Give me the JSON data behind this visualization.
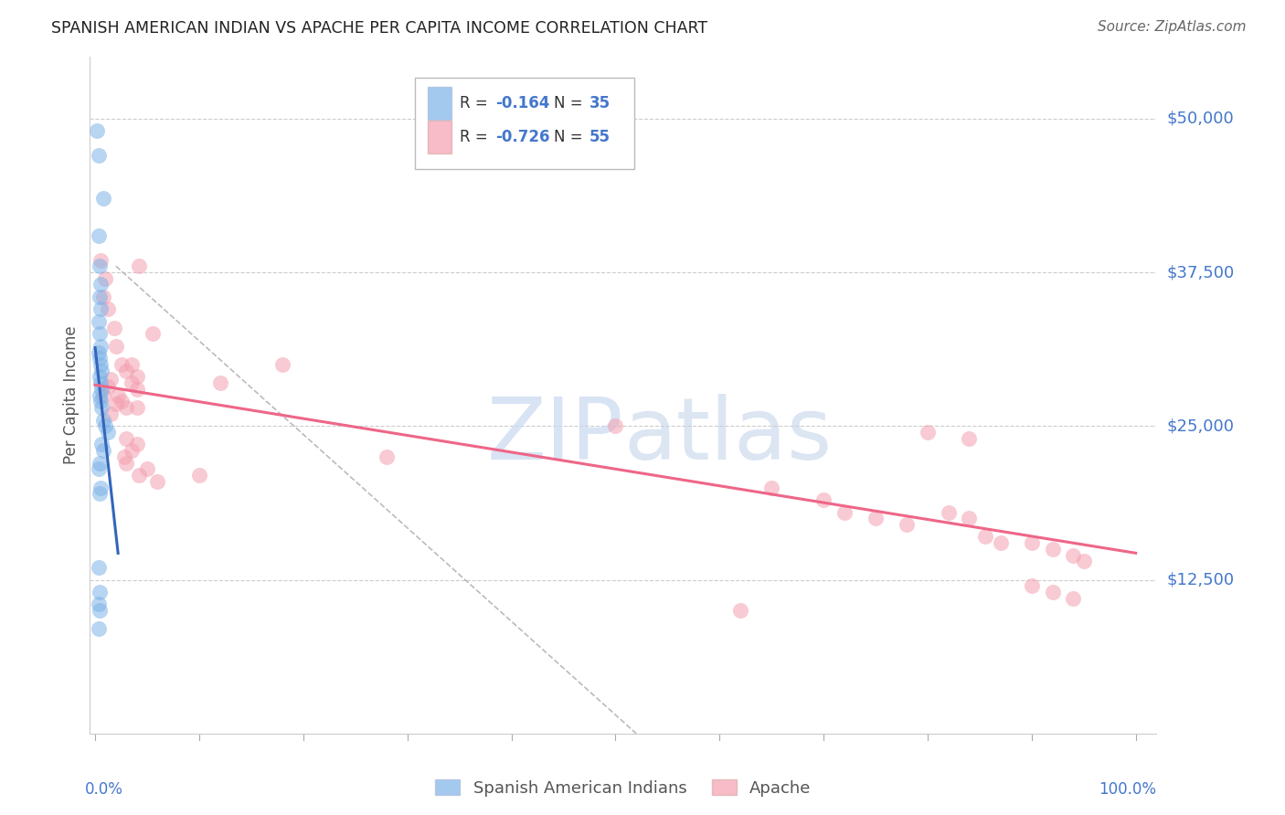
{
  "title": "SPANISH AMERICAN INDIAN VS APACHE PER CAPITA INCOME CORRELATION CHART",
  "source": "Source: ZipAtlas.com",
  "ylabel": "Per Capita Income",
  "ytick_labels": [
    "$12,500",
    "$25,000",
    "$37,500",
    "$50,000"
  ],
  "ytick_values": [
    12500,
    25000,
    37500,
    50000
  ],
  "ymin": 0,
  "ymax": 55000,
  "xmin": 0.0,
  "xmax": 1.0,
  "watermark": "ZIPatlas",
  "legend_blue_r": "-0.164",
  "legend_blue_n": "35",
  "legend_pink_r": "-0.726",
  "legend_pink_n": "55",
  "legend_blue_label": "Spanish American Indians",
  "legend_pink_label": "Apache",
  "blue_color": "#7EB3E8",
  "pink_color": "#F4A0B0",
  "blue_line_color": "#3366BB",
  "pink_line_color": "#EE6688",
  "dashed_line_color": "#BBBBBB",
  "title_fontsize": 12.5,
  "tick_label_color": "#4477CC",
  "source_color": "#666666",
  "ylabel_color": "#555555",
  "blue_x": [
    0.002,
    0.003,
    0.008,
    0.003,
    0.004,
    0.005,
    0.004,
    0.005,
    0.003,
    0.004,
    0.005,
    0.003,
    0.004,
    0.005,
    0.006,
    0.004,
    0.005,
    0.006,
    0.004,
    0.005,
    0.006,
    0.008,
    0.01,
    0.012,
    0.006,
    0.008,
    0.004,
    0.003,
    0.005,
    0.004,
    0.003,
    0.004,
    0.003,
    0.004,
    0.003
  ],
  "blue_y": [
    49000,
    47000,
    43500,
    40500,
    38000,
    36500,
    35500,
    34500,
    33500,
    32500,
    31500,
    31000,
    30500,
    30000,
    29500,
    29000,
    28500,
    28000,
    27500,
    27000,
    26500,
    25500,
    25000,
    24500,
    23500,
    23000,
    22000,
    21500,
    20000,
    19500,
    13500,
    11500,
    10500,
    10000,
    8500
  ],
  "pink_x": [
    0.005,
    0.01,
    0.008,
    0.042,
    0.012,
    0.018,
    0.02,
    0.025,
    0.03,
    0.015,
    0.012,
    0.008,
    0.02,
    0.035,
    0.04,
    0.025,
    0.03,
    0.015,
    0.035,
    0.04,
    0.022,
    0.04,
    0.055,
    0.18,
    0.12,
    0.03,
    0.04,
    0.035,
    0.028,
    0.03,
    0.05,
    0.042,
    0.06,
    0.1,
    0.28,
    0.5,
    0.62,
    0.65,
    0.7,
    0.72,
    0.75,
    0.78,
    0.82,
    0.84,
    0.855,
    0.87,
    0.9,
    0.92,
    0.94,
    0.95,
    0.8,
    0.84,
    0.9,
    0.92,
    0.94
  ],
  "pink_y": [
    38500,
    37000,
    35500,
    38000,
    34500,
    33000,
    31500,
    30000,
    29500,
    28800,
    28200,
    27500,
    26800,
    30000,
    29000,
    27000,
    26500,
    26000,
    28500,
    28000,
    27500,
    26500,
    32500,
    30000,
    28500,
    24000,
    23500,
    23000,
    22500,
    22000,
    21500,
    21000,
    20500,
    21000,
    22500,
    25000,
    10000,
    20000,
    19000,
    18000,
    17500,
    17000,
    18000,
    17500,
    16000,
    15500,
    15500,
    15000,
    14500,
    14000,
    24500,
    24000,
    12000,
    11500,
    11000
  ]
}
